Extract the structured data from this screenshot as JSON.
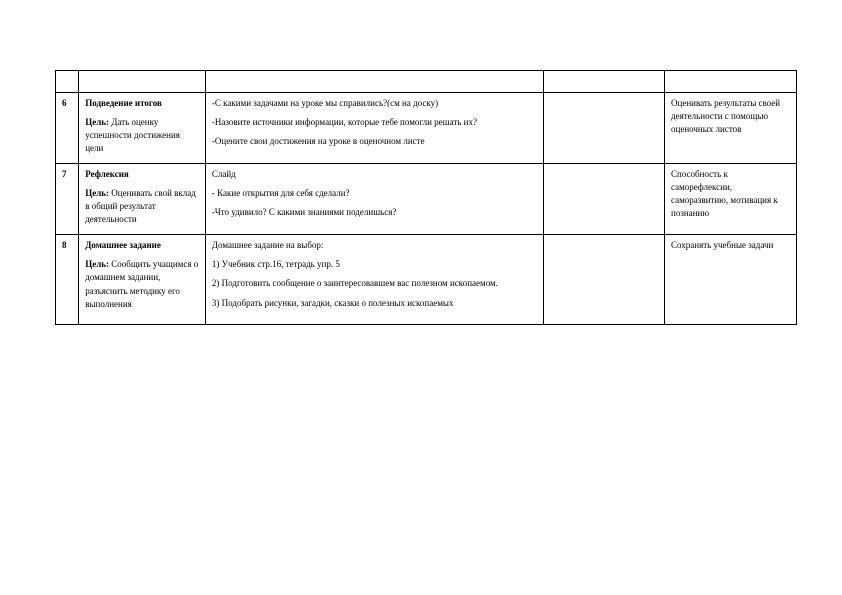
{
  "table": {
    "columns": {
      "num_width": 22,
      "stage_width": 120,
      "main_width": 320,
      "blank_width": 115,
      "out_width": 125
    },
    "header_row": {
      "cells": [
        "",
        "",
        "",
        "",
        ""
      ]
    },
    "rows": [
      {
        "num": "6",
        "stage_title": "Подведение итогов",
        "stage_goal_label": "Цель:",
        "stage_goal_text": " Дать оценку успешности достижения цели",
        "activity_lines": [
          "-С какими задачами на уроке мы справились?(см на доску)",
          "-Назовите источники информации, которые тебе помогли решать их?",
          "-Оцените свои достижения на уроке в оценочном листе"
        ],
        "blank": "",
        "outcome": "Оценивать результаты своей деятельности с помощью оценочных листов"
      },
      {
        "num": "7",
        "stage_title": "Рефлексия",
        "stage_goal_label": "Цель:",
        "stage_goal_text": " Оценивать свой вклад в общий результат деятельности",
        "activity_lines": [
          "Слайд",
          "- Какие открытия для себя сделали?",
          "-Что удивило? С какими знаниями поделишься?"
        ],
        "blank": "",
        "outcome": "Способность к саморефлексии, саморазвитию, мотивация к познанию"
      },
      {
        "num": "8",
        "stage_title": "Домашнее задание",
        "stage_goal_label": "Цель:",
        "stage_goal_text": " Сообщить учащимся о домашнем задании, разъяснить методику его выполнения",
        "activity_lines": [
          "Домашнее задание на выбор:",
          "1) Учебник стр.16, тетрадь упр. 5",
          "2) Подготовить сообщение о заинтересовавшем вас полезном ископаемом.",
          "3) Подобрать  рисунки, загадки, сказки о полезных ископаемых"
        ],
        "blank": "",
        "outcome": "Сохранять учебные задачи"
      }
    ]
  },
  "style": {
    "font_family": "Times New Roman",
    "font_size_pt": 9,
    "border_color": "#000000",
    "background_color": "#ffffff",
    "text_color": "#000000"
  }
}
